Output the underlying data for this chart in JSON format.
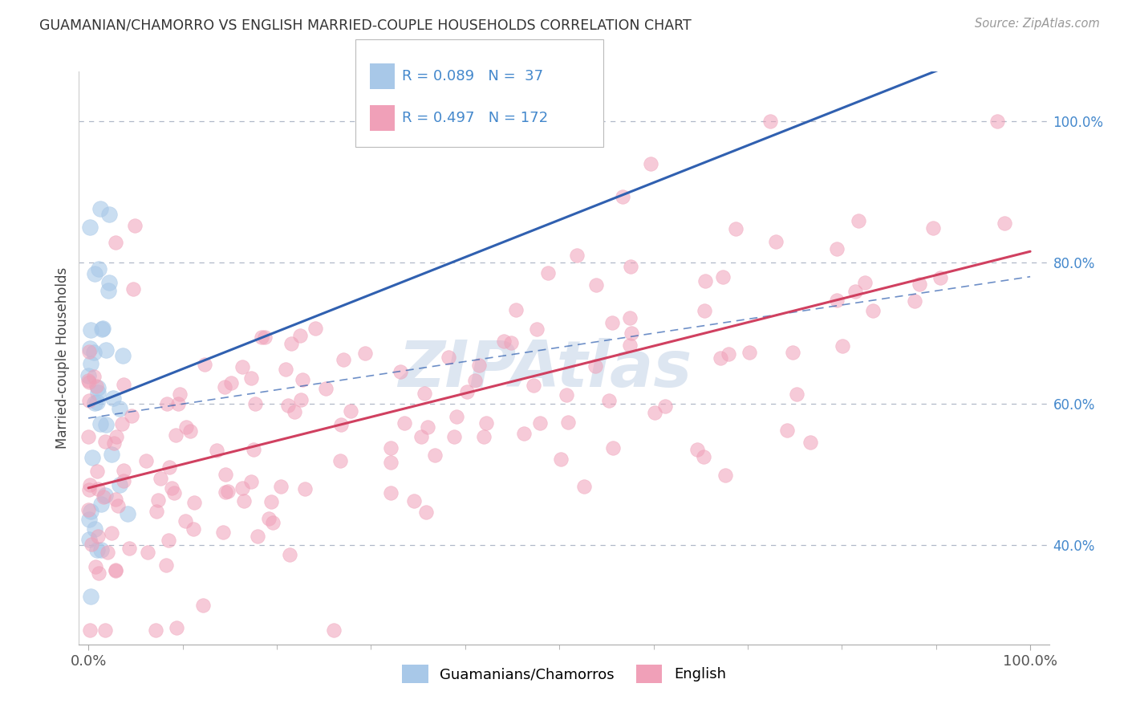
{
  "title": "GUAMANIAN/CHAMORRO VS ENGLISH MARRIED-COUPLE HOUSEHOLDS CORRELATION CHART",
  "source": "Source: ZipAtlas.com",
  "ylabel": "Married-couple Households",
  "x_tick_labels": [
    "0.0%",
    "100.0%"
  ],
  "y_tick_labels": [
    "40.0%",
    "60.0%",
    "80.0%",
    "100.0%"
  ],
  "legend_line1": "R = 0.089   N =  37",
  "legend_line2": "R = 0.497   N = 172",
  "color_guam": "#a8c8e8",
  "color_english": "#f0a0b8",
  "color_line_guam": "#3060b0",
  "color_line_english": "#d04060",
  "color_dashed": "#b0b8c8",
  "color_axis_text": "#4488cc",
  "color_title": "#444444",
  "watermark_color": "#a0b8d8",
  "legend_box_color": "#a8c8e8",
  "legend_box_color2": "#f0a0b8",
  "guam_seed": 123,
  "english_seed": 456,
  "n_guam": 37,
  "n_english": 172
}
